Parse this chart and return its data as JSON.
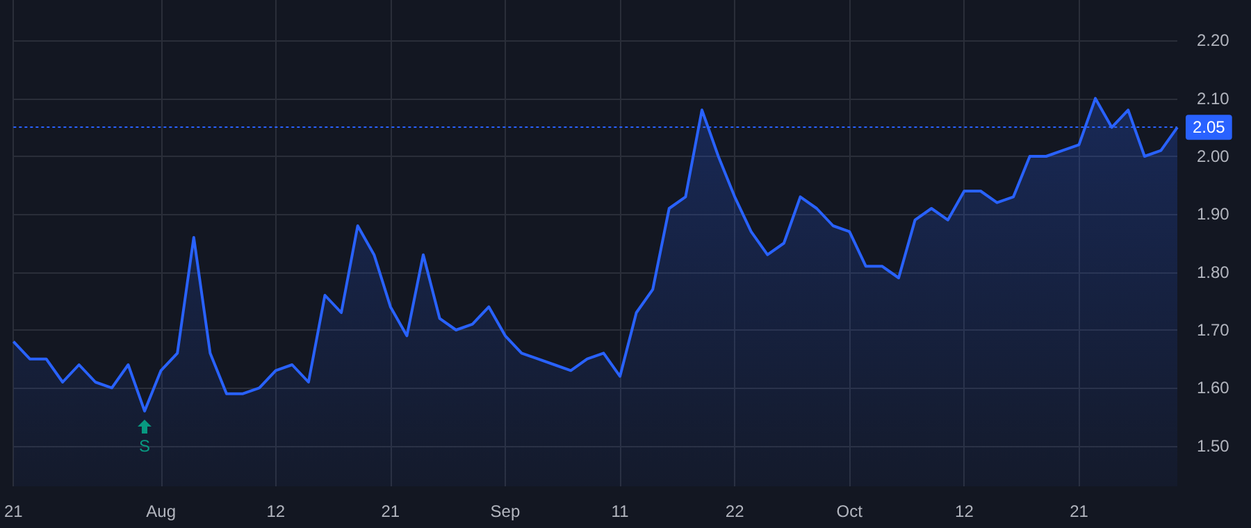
{
  "chart_data": {
    "type": "area",
    "categories": [
      "21",
      null,
      null,
      null,
      null,
      null,
      null,
      null,
      null,
      "Aug",
      null,
      null,
      null,
      null,
      null,
      null,
      "12",
      null,
      null,
      null,
      null,
      null,
      null,
      "21",
      null,
      null,
      null,
      null,
      null,
      null,
      "Sep",
      null,
      null,
      null,
      null,
      null,
      null,
      "11",
      null,
      null,
      null,
      null,
      null,
      null,
      "22",
      null,
      null,
      null,
      null,
      null,
      null,
      "Oct",
      null,
      null,
      null,
      null,
      null,
      null,
      "12",
      null,
      null,
      null,
      null,
      null,
      null,
      "21",
      null,
      null,
      null,
      null,
      null,
      null
    ],
    "series": [
      {
        "color": "#2962ff",
        "values": [
          1.68,
          1.65,
          1.65,
          1.61,
          1.64,
          1.61,
          1.6,
          1.64,
          1.56,
          1.63,
          1.66,
          1.86,
          1.66,
          1.59,
          1.59,
          1.6,
          1.63,
          1.64,
          1.61,
          1.76,
          1.73,
          1.88,
          1.83,
          1.74,
          1.69,
          1.83,
          1.72,
          1.7,
          1.71,
          1.74,
          1.69,
          1.66,
          1.65,
          1.64,
          1.63,
          1.65,
          1.66,
          1.62,
          1.73,
          1.77,
          1.91,
          1.93,
          2.08,
          2.0,
          1.93,
          1.87,
          1.83,
          1.85,
          1.93,
          1.91,
          1.88,
          1.87,
          1.81,
          1.81,
          1.79,
          1.89,
          1.91,
          1.89,
          1.94,
          1.94,
          1.92,
          1.93,
          2.0,
          2.0,
          2.01,
          2.02,
          2.1,
          2.05,
          2.08,
          2.0,
          2.01,
          2.05
        ]
      }
    ],
    "ylim": [
      1.43,
      2.27
    ],
    "yticks": [
      {
        "value": 1.5,
        "label": "1.50"
      },
      {
        "value": 1.6,
        "label": "1.60"
      },
      {
        "value": 1.7,
        "label": "1.70"
      },
      {
        "value": 1.8,
        "label": "1.80"
      },
      {
        "value": 1.9,
        "label": "1.90"
      },
      {
        "value": 2.0,
        "label": "2.00"
      },
      {
        "value": 2.1,
        "label": "2.10"
      },
      {
        "value": 2.2,
        "label": "2.20"
      }
    ],
    "ref_lines": [
      {
        "axis": "y",
        "value": 2.05,
        "label": "2.05",
        "color": "#2962ff",
        "line_style": "dotted"
      }
    ],
    "annotations": [
      {
        "text": "S",
        "y": 1.56
      }
    ],
    "grid": true,
    "marker": "none"
  }
}
